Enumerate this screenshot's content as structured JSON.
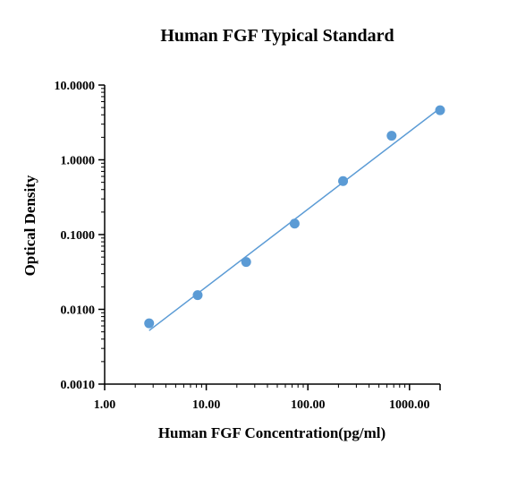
{
  "chart_data": {
    "type": "scatter",
    "title": "Human FGF Typical Standard",
    "xlabel": "Human FGF Concentration(pg/ml)",
    "ylabel": "Optical Density",
    "x_scale": "log",
    "y_scale": "log",
    "xlim": [
      1,
      2000
    ],
    "ylim": [
      0.001,
      10
    ],
    "x_ticks": [
      1,
      10,
      100,
      1000
    ],
    "x_tick_labels": [
      "1.00",
      "10.00",
      "100.00",
      "1000.00"
    ],
    "y_ticks": [
      0.001,
      0.01,
      0.1,
      1,
      10
    ],
    "y_tick_labels": [
      "0.0010",
      "0.0100",
      "0.1000",
      "1.0000",
      "10.0000"
    ],
    "grid": false,
    "colors": {
      "points": "#5b9bd5",
      "line": "#5b9bd5",
      "axis": "#000000"
    },
    "series": [
      {
        "x": [
          2.74,
          8.23,
          24.7,
          74.1,
          222,
          667,
          2000
        ],
        "y": [
          0.0065,
          0.0155,
          0.043,
          0.14,
          0.52,
          2.1,
          4.6
        ]
      }
    ],
    "fit_line": {
      "x": [
        2.74,
        2000
      ],
      "y": [
        0.0052,
        4.9
      ]
    }
  }
}
